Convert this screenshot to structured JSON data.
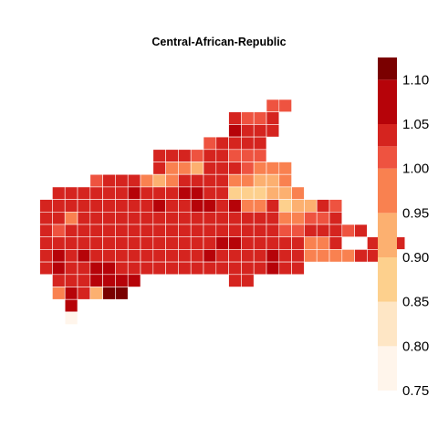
{
  "chart_data": {
    "type": "heatmap",
    "title": "Central-African-Republic",
    "colorbar": {
      "ticks": [
        "0.75",
        "0.80",
        "0.85",
        "0.90",
        "0.95",
        "1.00",
        "1.05",
        "1.10"
      ],
      "range": [
        0.75,
        1.125
      ],
      "bins": [
        {
          "lo": 0.75,
          "hi": 0.8,
          "color": "#fff5eb"
        },
        {
          "lo": 0.8,
          "hi": 0.85,
          "color": "#fee6c5"
        },
        {
          "lo": 0.85,
          "hi": 0.9,
          "color": "#fdd08d"
        },
        {
          "lo": 0.9,
          "hi": 0.95,
          "color": "#fcb070"
        },
        {
          "lo": 0.95,
          "hi": 1.0,
          "color": "#f98150"
        },
        {
          "lo": 1.0,
          "hi": 1.025,
          "color": "#ee5340"
        },
        {
          "lo": 1.025,
          "hi": 1.05,
          "color": "#d5241f"
        },
        {
          "lo": 1.05,
          "hi": 1.1,
          "color": "#b60309"
        },
        {
          "lo": 1.1,
          "hi": 1.125,
          "color": "#7a0000"
        }
      ]
    },
    "grid_rows": [
      "                    AA            ",
      "                 BAAB            ",
      "                 HBBB            ",
      "               ABBBB             ",
      "           BBBABBAAA             ",
      "           BCCEBBBACCC           ",
      "      ABBBCDCBBBBCCDDC           ",
      "   BBBBBBHBBBHHBBFFFDDC          ",
      "  BBBBBBBBBHBBHHBHCCBFDDBA       ",
      "  BBCBBBBBBBBBBBBBBBBCCAAB       ",
      "  BABBBBBBBBBBBBBBBBBAABBBAB     ",
      "  BBBBBBBBBBBBBBHHBBBBBCCB  BBB  ",
      "  BHBHBBBBBBBBBHBBBBHBBCCCCBB    ",
      "  BHBBHHBBBBBBBBBBBBHBB          ",
      "   BBBHHHH       BB              ",
      "   CHBDII                        ",
      "    H                            ",
      "    G                            "
    ],
    "grid_codes": {
      "A": 1.01,
      "B": 1.035,
      "C": 0.97,
      "D": 0.93,
      "E": 0.92,
      "F": 0.87,
      "G": 0.77,
      "H": 1.07,
      "I": 1.115
    }
  }
}
